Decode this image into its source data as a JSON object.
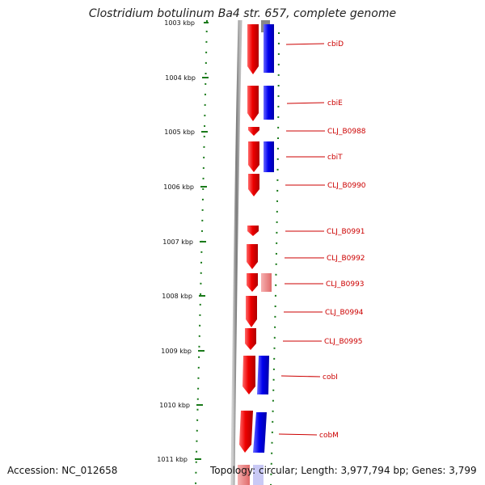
{
  "title": "Clostridium botulinum Ba4 str. 657, complete genome",
  "footer": {
    "accession": "Accession: NC_012658",
    "topology": "Topology: circular; Length: 3,977,794 bp; Genes: 3,799"
  },
  "colors": {
    "forward_cds": "#ee0000",
    "reverse_cds": "#0000ee",
    "gene_label": "#cc0000",
    "tick": "#1a7a1a",
    "backbone": "#888888"
  },
  "ticks": [
    "1003 kbp",
    "1004 kbp",
    "1005 kbp",
    "1006 kbp",
    "1007 kbp",
    "1008 kbp",
    "1009 kbp",
    "1010 kbp",
    "1011 kbp"
  ],
  "genes": [
    {
      "name": "cbiD"
    },
    {
      "name": "cbiE"
    },
    {
      "name": "CLJ_B0988"
    },
    {
      "name": "cbiT"
    },
    {
      "name": "CLJ_B0990"
    },
    {
      "name": "CLJ_B0991"
    },
    {
      "name": "CLJ_B0992"
    },
    {
      "name": "CLJ_B0993"
    },
    {
      "name": "CLJ_B0994"
    },
    {
      "name": "CLJ_B0995"
    },
    {
      "name": "cobI"
    },
    {
      "name": "cobM"
    }
  ]
}
